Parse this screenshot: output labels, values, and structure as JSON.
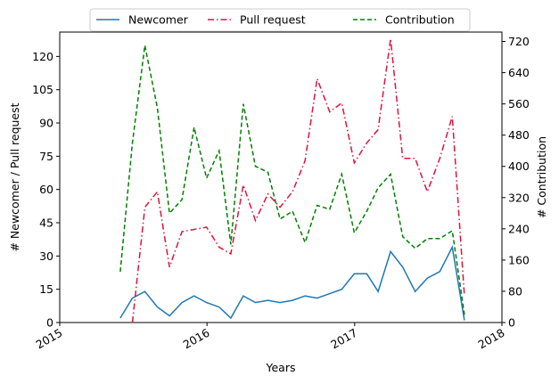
{
  "chart_data": {
    "type": "line",
    "title": "",
    "xlabel": "Years",
    "ylabel_left": "# Newcomer / Pull request",
    "ylabel_right": "# Contribution",
    "xlim": [
      "2015-01-01",
      "2018-01-01"
    ],
    "ylim_left": [
      0,
      131
    ],
    "ylim_right": [
      0,
      744
    ],
    "x_ticks": [
      "2015",
      "2016",
      "2017",
      "2018"
    ],
    "y_ticks_left": [
      "0",
      "15",
      "30",
      "45",
      "60",
      "75",
      "90",
      "105",
      "120"
    ],
    "y_ticks_right": [
      "0",
      "80",
      "160",
      "240",
      "320",
      "400",
      "480",
      "560",
      "640",
      "720"
    ],
    "grid": false,
    "legend_position": "top-center",
    "colors": {
      "Newcomer": "#1f77b4",
      "Pull request": "#dc143c",
      "Contribution": "#008000"
    },
    "series": [
      {
        "name": "Newcomer",
        "axis": "left",
        "style": "solid",
        "x": [
          "2015-05-31",
          "2015-06-30",
          "2015-07-31",
          "2015-08-31",
          "2015-09-30",
          "2015-10-31",
          "2015-11-30",
          "2015-12-31",
          "2016-01-31",
          "2016-02-29",
          "2016-03-31",
          "2016-04-30",
          "2016-05-31",
          "2016-06-30",
          "2016-07-31",
          "2016-08-31",
          "2016-09-30",
          "2016-10-31",
          "2016-11-30",
          "2016-12-31",
          "2017-01-31",
          "2017-02-28",
          "2017-03-31",
          "2017-04-30",
          "2017-05-31",
          "2017-06-30",
          "2017-07-31",
          "2017-08-31",
          "2017-09-30"
        ],
        "y": [
          2,
          11,
          14,
          7,
          3,
          9,
          12,
          9,
          7,
          2,
          12,
          9,
          10,
          9,
          10,
          12,
          11,
          13,
          15,
          22,
          22,
          14,
          32,
          25,
          14,
          20,
          23,
          34,
          1
        ]
      },
      {
        "name": "Pull request",
        "axis": "left",
        "style": "dashdot",
        "x": [
          "2015-06-30",
          "2015-07-31",
          "2015-08-31",
          "2015-09-30",
          "2015-10-31",
          "2015-11-30",
          "2015-12-31",
          "2016-01-31",
          "2016-02-29",
          "2016-03-31",
          "2016-04-30",
          "2016-05-31",
          "2016-06-30",
          "2016-07-31",
          "2016-08-31",
          "2016-09-30",
          "2016-10-31",
          "2016-11-30",
          "2016-12-31",
          "2017-01-31",
          "2017-02-28",
          "2017-03-31",
          "2017-04-30",
          "2017-05-31",
          "2017-06-30",
          "2017-07-31",
          "2017-08-31",
          "2017-09-30"
        ],
        "y": [
          0,
          52,
          59,
          25,
          41,
          42,
          43,
          34,
          31,
          62,
          46,
          58,
          52,
          59,
          73,
          110,
          95,
          99,
          72,
          81,
          87,
          128,
          74,
          74,
          59,
          74,
          93,
          12
        ]
      },
      {
        "name": "Contribution",
        "axis": "right",
        "style": "dashed",
        "x": [
          "2015-05-31",
          "2015-06-30",
          "2015-07-31",
          "2015-08-31",
          "2015-09-30",
          "2015-10-31",
          "2015-11-30",
          "2015-12-31",
          "2016-01-31",
          "2016-02-29",
          "2016-03-31",
          "2016-04-30",
          "2016-05-31",
          "2016-06-30",
          "2016-07-31",
          "2016-08-31",
          "2016-09-30",
          "2016-10-31",
          "2016-11-30",
          "2016-12-31",
          "2017-01-31",
          "2017-02-28",
          "2017-03-31",
          "2017-04-30",
          "2017-05-31",
          "2017-06-30",
          "2017-07-31",
          "2017-08-31",
          "2017-09-30"
        ],
        "y": [
          130,
          460,
          710,
          550,
          280,
          315,
          500,
          370,
          440,
          200,
          560,
          400,
          385,
          265,
          285,
          205,
          300,
          290,
          380,
          230,
          285,
          345,
          380,
          220,
          190,
          215,
          215,
          235,
          20
        ]
      }
    ]
  }
}
